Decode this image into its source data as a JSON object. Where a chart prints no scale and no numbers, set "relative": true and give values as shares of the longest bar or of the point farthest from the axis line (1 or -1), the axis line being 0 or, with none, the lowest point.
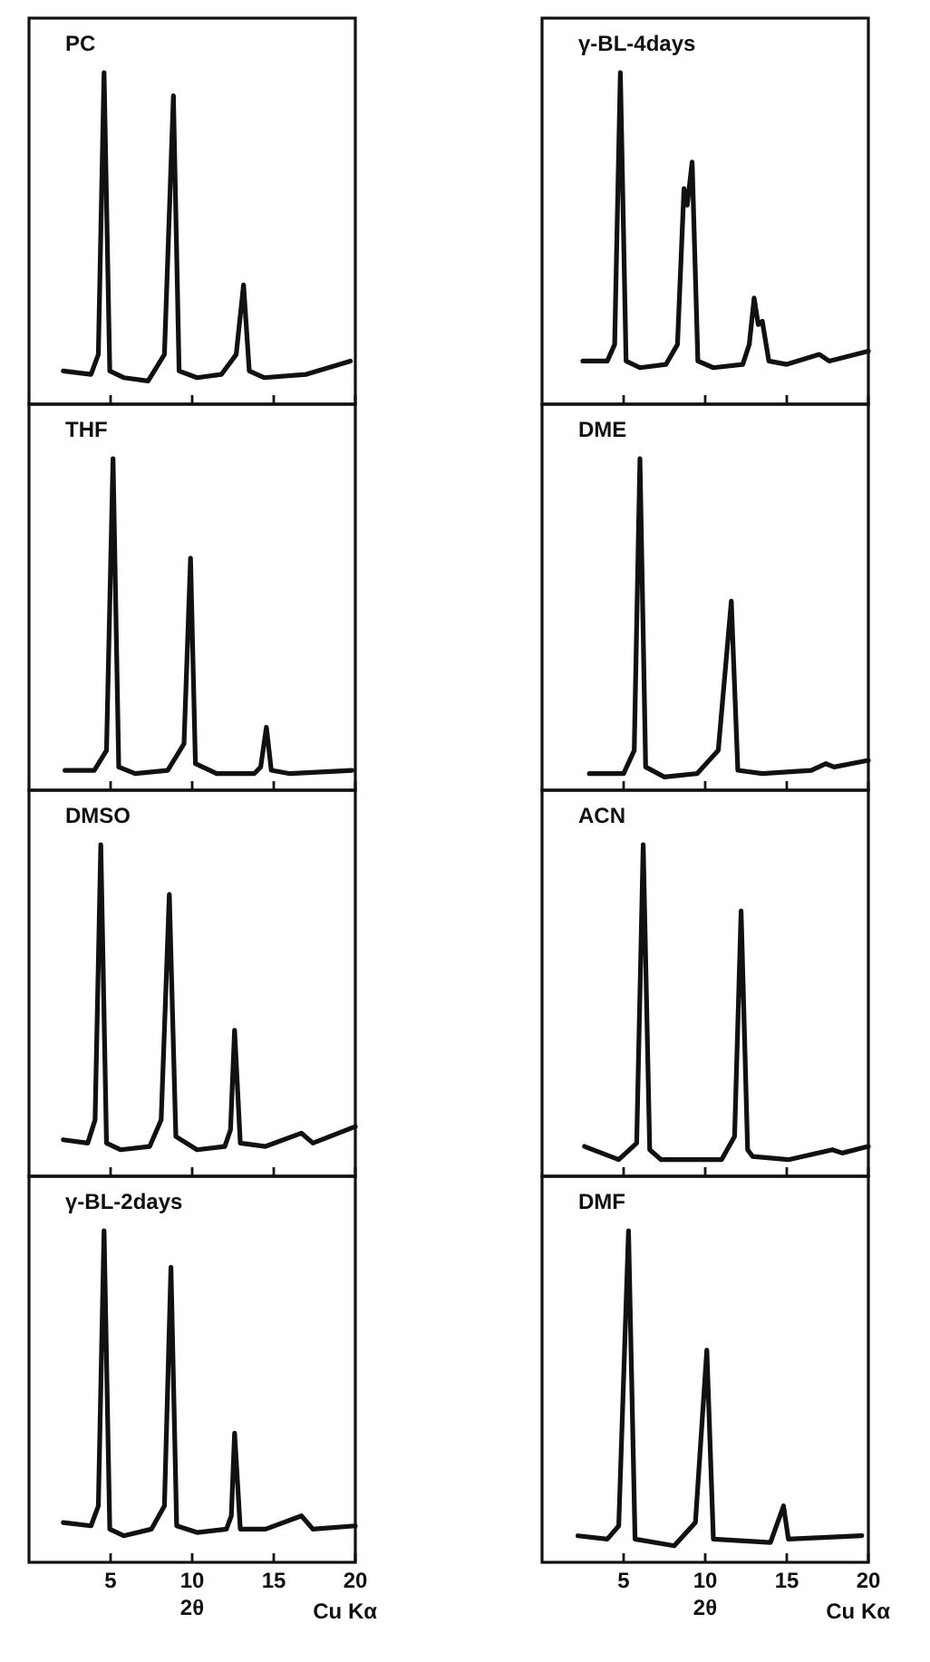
{
  "chart_data": [
    {
      "type": "line",
      "title": "PC",
      "relative": true,
      "xlim": [
        0,
        20
      ],
      "xticks": [
        5,
        10,
        15,
        20
      ],
      "tick_labels": false,
      "x": [
        2.1,
        3.8,
        4.25,
        4.6,
        4.95,
        5.8,
        7.3,
        8.3,
        8.85,
        9.2,
        10.3,
        11.8,
        12.7,
        13.15,
        13.5,
        14.4,
        17,
        19.7
      ],
      "series": [
        {
          "color": "#111111",
          "values": [
            0.1,
            0.09,
            0.15,
            1,
            0.1,
            0.08,
            0.07,
            0.15,
            0.93,
            0.1,
            0.08,
            0.09,
            0.15,
            0.36,
            0.1,
            0.08,
            0.09,
            0.13
          ]
        }
      ]
    },
    {
      "type": "line",
      "title": "γ-BL-4days",
      "relative": true,
      "xlim": [
        0,
        20
      ],
      "xticks": [
        5,
        10,
        15,
        20
      ],
      "tick_labels": false,
      "x": [
        2.5,
        4.0,
        4.45,
        4.8,
        5.15,
        6.0,
        7.6,
        8.3,
        8.7,
        8.9,
        9.2,
        9.55,
        10.5,
        12.3,
        12.7,
        13.0,
        13.25,
        13.5,
        13.9,
        15,
        17,
        17.6,
        20
      ],
      "series": [
        {
          "color": "#111111",
          "values": [
            0.13,
            0.13,
            0.18,
            1,
            0.13,
            0.11,
            0.12,
            0.18,
            0.65,
            0.6,
            0.73,
            0.13,
            0.11,
            0.12,
            0.18,
            0.32,
            0.24,
            0.25,
            0.13,
            0.12,
            0.15,
            0.13,
            0.16
          ]
        }
      ]
    },
    {
      "type": "line",
      "title": "THF",
      "relative": true,
      "xlim": [
        0,
        20
      ],
      "xticks": [
        5,
        10,
        15,
        20
      ],
      "tick_labels": false,
      "x": [
        2.2,
        4.0,
        4.75,
        5.15,
        5.5,
        6.5,
        8.5,
        9.5,
        9.9,
        10.2,
        11.5,
        13.8,
        14.2,
        14.55,
        14.85,
        16,
        19.8
      ],
      "series": [
        {
          "color": "#111111",
          "values": [
            0.06,
            0.06,
            0.12,
            1,
            0.07,
            0.05,
            0.06,
            0.14,
            0.7,
            0.08,
            0.05,
            0.05,
            0.07,
            0.19,
            0.06,
            0.05,
            0.06
          ]
        }
      ]
    },
    {
      "type": "line",
      "title": "DME",
      "relative": true,
      "xlim": [
        0,
        20
      ],
      "xticks": [
        5,
        10,
        15,
        20
      ],
      "tick_labels": false,
      "x": [
        2.9,
        5.0,
        5.65,
        6.0,
        6.35,
        7.5,
        9.5,
        10.8,
        11.6,
        12.0,
        13.5,
        16.5,
        17.4,
        17.9,
        20
      ],
      "series": [
        {
          "color": "#111111",
          "values": [
            0.05,
            0.05,
            0.12,
            1,
            0.07,
            0.04,
            0.05,
            0.12,
            0.57,
            0.06,
            0.05,
            0.06,
            0.08,
            0.07,
            0.09
          ]
        }
      ]
    },
    {
      "type": "line",
      "title": "DMSO",
      "relative": true,
      "xlim": [
        0,
        20
      ],
      "xticks": [
        5,
        10,
        15,
        20
      ],
      "tick_labels": false,
      "x": [
        2.1,
        3.6,
        4.05,
        4.4,
        4.75,
        5.6,
        7.4,
        8.1,
        8.6,
        9.0,
        10.3,
        12.0,
        12.35,
        12.6,
        12.95,
        14.5,
        16.7,
        17.4,
        20
      ],
      "series": [
        {
          "color": "#111111",
          "values": [
            0.11,
            0.1,
            0.17,
            1,
            0.1,
            0.08,
            0.09,
            0.17,
            0.85,
            0.12,
            0.08,
            0.09,
            0.14,
            0.44,
            0.1,
            0.09,
            0.13,
            0.1,
            0.15
          ]
        }
      ]
    },
    {
      "type": "line",
      "title": "ACN",
      "relative": true,
      "xlim": [
        0,
        20
      ],
      "xticks": [
        5,
        10,
        15,
        20
      ],
      "tick_labels": false,
      "x": [
        2.6,
        4.7,
        5.8,
        6.2,
        6.6,
        7.3,
        11.0,
        11.8,
        12.2,
        12.6,
        12.9,
        15.1,
        17.8,
        18.4,
        20
      ],
      "series": [
        {
          "color": "#111111",
          "values": [
            0.09,
            0.05,
            0.1,
            1,
            0.08,
            0.05,
            0.05,
            0.12,
            0.8,
            0.08,
            0.06,
            0.05,
            0.08,
            0.07,
            0.09
          ]
        }
      ]
    },
    {
      "type": "line",
      "title": "γ-BL-2days",
      "relative": true,
      "xlim": [
        0,
        20
      ],
      "xticks": [
        5,
        10,
        15,
        20
      ],
      "tick_labels": "x",
      "xlabel": "2θ",
      "annotations": [
        "Cu Kα"
      ],
      "x": [
        2.1,
        3.8,
        4.25,
        4.6,
        4.95,
        5.8,
        7.5,
        8.3,
        8.7,
        9.05,
        10.3,
        12.1,
        12.4,
        12.6,
        12.95,
        14.5,
        16.7,
        17.4,
        20
      ],
      "series": [
        {
          "color": "#111111",
          "values": [
            0.12,
            0.11,
            0.17,
            1,
            0.1,
            0.08,
            0.1,
            0.17,
            0.89,
            0.11,
            0.09,
            0.1,
            0.14,
            0.39,
            0.1,
            0.1,
            0.14,
            0.1,
            0.11
          ]
        }
      ]
    },
    {
      "type": "line",
      "title": "DMF",
      "relative": true,
      "xlim": [
        0,
        20
      ],
      "xticks": [
        5,
        10,
        15,
        20
      ],
      "tick_labels": "x",
      "xlabel": "2θ",
      "annotations": [
        "Cu Kα"
      ],
      "x": [
        2.2,
        4.0,
        4.7,
        5.3,
        5.7,
        8.1,
        9.4,
        10.1,
        10.5,
        14.0,
        14.8,
        15.1,
        19.6
      ],
      "series": [
        {
          "color": "#111111",
          "values": [
            0.08,
            0.07,
            0.11,
            1,
            0.07,
            0.05,
            0.12,
            0.64,
            0.07,
            0.06,
            0.17,
            0.07,
            0.08
          ]
        }
      ]
    }
  ]
}
